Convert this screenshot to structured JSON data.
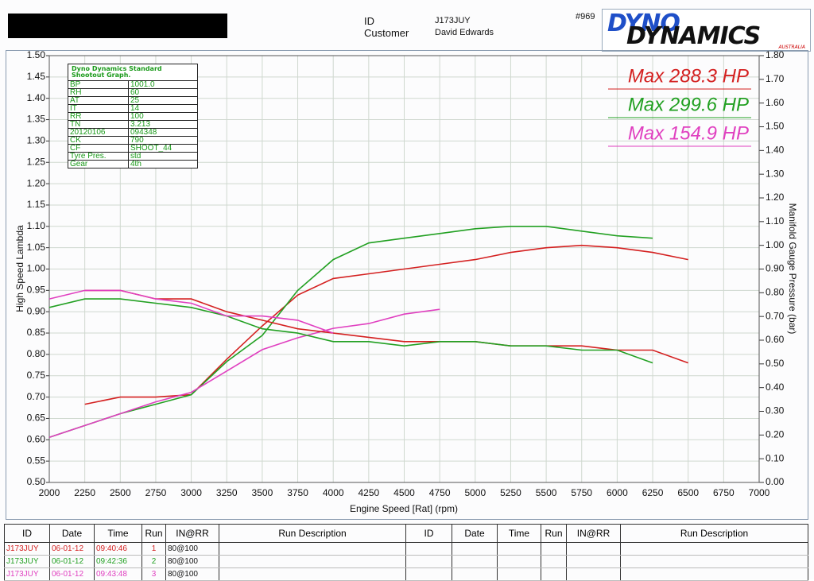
{
  "header": {
    "id_label": "ID",
    "id_value": "J173JUY",
    "customer_label": "Customer",
    "customer_value": "David Edwards",
    "number": "#969",
    "logo_top": "DYNO",
    "logo_bottom": "DYNAMICS",
    "logo_sub": "AUSTRALIA"
  },
  "info_table": {
    "title": "Dyno Dynamics Standard Shootout Graph.",
    "rows": [
      [
        "BP",
        "1001.0"
      ],
      [
        "RH",
        "60"
      ],
      [
        "AT",
        "25"
      ],
      [
        "IT",
        "14"
      ],
      [
        "RR",
        "100"
      ],
      [
        "TN",
        "3.213"
      ],
      [
        "20120106",
        "094348"
      ],
      [
        "CK",
        "790"
      ],
      [
        "CF",
        "SHOOT_44"
      ],
      [
        "Tyre Pres.",
        "std"
      ],
      [
        "Gear",
        "4th"
      ]
    ]
  },
  "runs_table": {
    "columns": [
      "ID",
      "Date",
      "Time",
      "Run",
      "IN@RR",
      "Run Description",
      "ID",
      "Date",
      "Time",
      "Run",
      "IN@RR",
      "Run Description"
    ],
    "rows": [
      [
        "J173JUY",
        "06-01-12",
        "09:40:46",
        "1",
        "80@100"
      ],
      [
        "J173JUY",
        "06-01-12",
        "09:42:36",
        "2",
        "80@100"
      ],
      [
        "J173JUY",
        "06-01-12",
        "09:43:48",
        "3",
        "80@100"
      ]
    ]
  },
  "chart_data": {
    "type": "line",
    "xlabel": "Engine Speed [Rat] (rpm)",
    "ylabel": "High Speed Lambda",
    "y2label": "Manifold Gauge Pressure (bar)",
    "grid": true,
    "x": [
      2000,
      2250,
      2500,
      2750,
      3000,
      3250,
      3500,
      3750,
      4000,
      4250,
      4500,
      4750,
      5000,
      5250,
      5500,
      5750,
      6000,
      6250,
      6500
    ],
    "xlim": [
      2000,
      7000
    ],
    "xticks": [
      2000,
      2250,
      2500,
      2750,
      3000,
      3250,
      3500,
      3750,
      4000,
      4250,
      4500,
      4750,
      5000,
      5250,
      5500,
      5750,
      6000,
      6250,
      6500,
      6750,
      7000
    ],
    "ylim": [
      0.5,
      1.5
    ],
    "yticks": [
      {
        "value": 0.5,
        "label": "0.50"
      },
      0.55,
      {
        "value": 0.6,
        "label": "0.60"
      },
      0.65,
      {
        "value": 0.7,
        "label": "0.70"
      },
      0.75,
      {
        "value": 0.8,
        "label": "0.80"
      },
      0.85,
      {
        "value": 0.9,
        "label": "0.90"
      },
      0.95,
      {
        "value": 1.0,
        "label": "1.00"
      },
      1.05,
      {
        "value": 1.1,
        "label": "1.10"
      },
      1.15,
      {
        "value": 1.2,
        "label": "1.20"
      },
      1.25,
      {
        "value": 1.3,
        "label": "1.30"
      },
      1.35,
      {
        "value": 1.4,
        "label": "1.40"
      },
      1.45,
      {
        "value": 1.5,
        "label": "1.50"
      }
    ],
    "y2lim": [
      0,
      1.8
    ],
    "y2ticks": [
      {
        "value": 0,
        "label": "0.00"
      },
      {
        "value": 0.1,
        "label": "0.10"
      },
      {
        "value": 0.2,
        "label": "0.20"
      },
      {
        "value": 0.3,
        "label": "0.30"
      },
      {
        "value": 0.4,
        "label": "0.40"
      },
      {
        "value": 0.5,
        "label": "0.50"
      },
      {
        "value": 0.6,
        "label": "0.60"
      },
      {
        "value": 0.7,
        "label": "0.70"
      },
      {
        "value": 0.8,
        "label": "0.80"
      },
      {
        "value": 0.9,
        "label": "0.90"
      },
      {
        "value": 1.0,
        "label": "1.00"
      },
      {
        "value": 1.1,
        "label": "1.10"
      },
      {
        "value": 1.2,
        "label": "1.20"
      },
      {
        "value": 1.3,
        "label": "1.30"
      },
      {
        "value": 1.4,
        "label": "1.40"
      },
      {
        "value": 1.5,
        "label": "1.50"
      },
      {
        "value": 1.6,
        "label": "1.60"
      },
      {
        "value": 1.7,
        "label": "1.70"
      },
      {
        "value": 1.8,
        "label": "1.80"
      }
    ],
    "series": [
      {
        "color": "#d42020",
        "axis": "y2",
        "values": [
          null,
          0.33,
          0.36,
          0.36,
          0.37,
          0.52,
          0.66,
          0.79,
          0.86,
          0.88,
          0.9,
          0.92,
          0.94,
          0.97,
          0.99,
          1.0,
          0.99,
          0.97,
          0.94
        ]
      },
      {
        "color": "#22a022",
        "axis": "y2",
        "values": [
          0.19,
          0.24,
          0.29,
          0.33,
          0.37,
          0.51,
          0.62,
          0.81,
          0.94,
          1.01,
          1.03,
          1.05,
          1.07,
          1.08,
          1.08,
          1.06,
          1.04,
          1.03,
          null
        ]
      },
      {
        "color": "#e040c0",
        "axis": "y2",
        "values": [
          0.19,
          0.24,
          0.29,
          0.34,
          0.38,
          0.47,
          0.56,
          0.61,
          0.65,
          0.67,
          0.71,
          0.73,
          null,
          null,
          null,
          null,
          null,
          null,
          null
        ]
      },
      {
        "color": "#d42020",
        "values": [
          null,
          0.95,
          0.95,
          0.93,
          0.93,
          0.9,
          0.88,
          0.86,
          0.85,
          0.84,
          0.83,
          0.83,
          0.83,
          0.82,
          0.82,
          0.82,
          0.81,
          0.81,
          0.78
        ]
      },
      {
        "color": "#22a022",
        "values": [
          0.91,
          0.93,
          0.93,
          0.92,
          0.91,
          0.89,
          0.86,
          0.85,
          0.83,
          0.83,
          0.82,
          0.83,
          0.83,
          0.82,
          0.82,
          0.81,
          0.81,
          0.78,
          null
        ]
      },
      {
        "color": "#e040c0",
        "values": [
          0.93,
          0.95,
          0.95,
          0.93,
          0.92,
          0.89,
          0.89,
          0.88,
          0.85,
          null,
          null,
          null,
          null,
          null,
          null,
          null,
          null,
          null,
          null
        ]
      }
    ],
    "annotations": [
      {
        "text": "Max 288.3 HP",
        "color": "#d42020"
      },
      {
        "text": "Max 299.6 HP",
        "color": "#22a022"
      },
      {
        "text": "Max 154.9 HP",
        "color": "#e040c0"
      }
    ]
  }
}
